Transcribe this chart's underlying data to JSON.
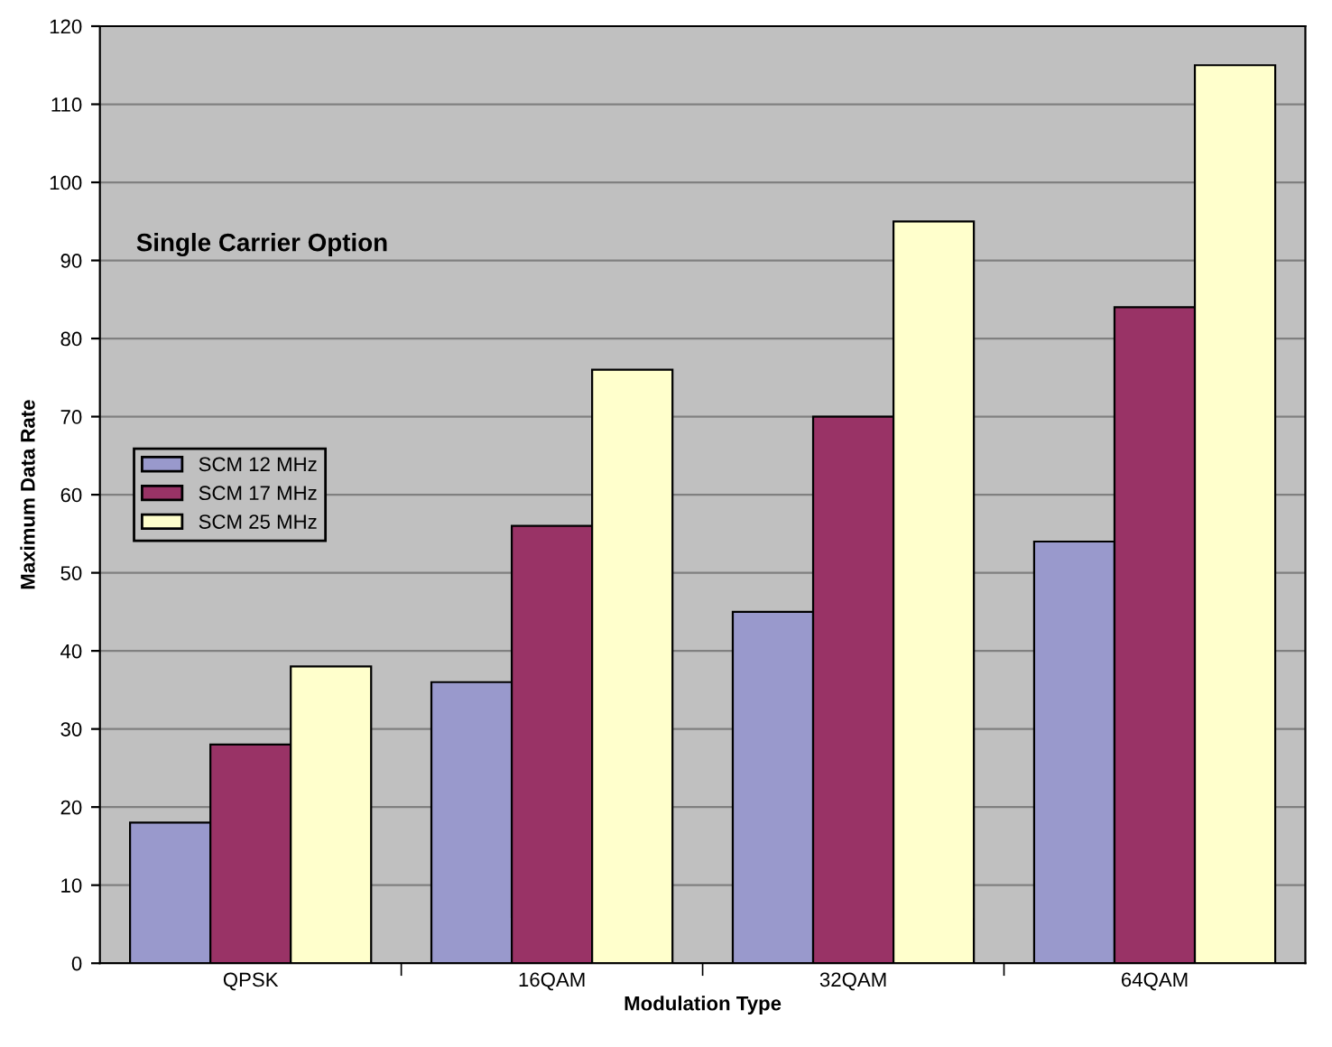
{
  "chart_data": {
    "type": "bar",
    "xlabel": "Modulation Type",
    "ylabel": "Maximum Data Rate",
    "categories": [
      "QPSK",
      "16QAM",
      "32QAM",
      "64QAM"
    ],
    "series": [
      {
        "name": "SCM 12 MHz",
        "color": "#9999cc",
        "values": [
          18,
          36,
          45,
          54
        ]
      },
      {
        "name": "SCM 17 MHz",
        "color": "#993366",
        "values": [
          28,
          56,
          70,
          84
        ]
      },
      {
        "name": "SCM 25 MHz",
        "color": "#ffffcc",
        "values": [
          38,
          76,
          95,
          115
        ]
      }
    ],
    "ylim": [
      0,
      120
    ],
    "yticks": [
      0,
      10,
      20,
      30,
      40,
      50,
      60,
      70,
      80,
      90,
      100,
      110,
      120
    ],
    "grid": "y",
    "legend": "center left",
    "annotations": [
      "Single Carrier Option"
    ]
  }
}
